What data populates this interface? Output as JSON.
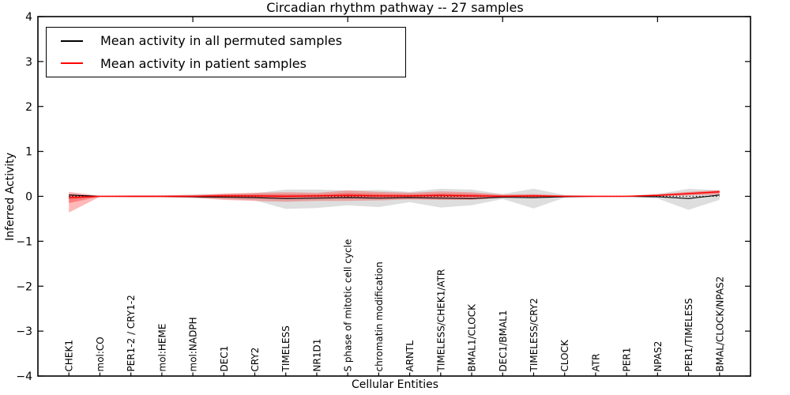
{
  "title": "Circadian rhythm pathway -- 27 samples",
  "axes": {
    "xlabel": "Cellular Entities",
    "ylabel": "Inferred Activity"
  },
  "legend": {
    "position": "upper left",
    "items": [
      {
        "label": "Mean activity in all permuted samples",
        "color": "#000000"
      },
      {
        "label": "Mean activity in patient samples",
        "color": "#ff0000"
      }
    ]
  },
  "chart_data": {
    "type": "line",
    "title": "Circadian rhythm pathway -- 27 samples",
    "xlabel": "Cellular Entities",
    "ylabel": "Inferred Activity",
    "grid": false,
    "legend_position": "upper left",
    "ylim": [
      -4,
      4
    ],
    "yticks": [
      -4,
      -3,
      -2,
      -1,
      0,
      1,
      2,
      3,
      4
    ],
    "top_axis_tick_positions": [
      5,
      10,
      15,
      20
    ],
    "categories": [
      "CHEK1",
      "mol:CO",
      "PER1-2 / CRY1-2",
      "mol:HEME",
      "mol:NADPH",
      "DEC1",
      "CRY2",
      "TIMELESS",
      "NR1D1",
      "S phase of mitotic cell cycle",
      "chromatin modification",
      "ARNTL",
      "TIMELESS/CHEK1/ATR",
      "BMAL1/CLOCK",
      "DEC1/BMAL1",
      "TIMELESS/CRY2",
      "CLOCK",
      "ATR",
      "PER1",
      "NPAS2",
      "PER1/TIMELESS",
      "BMAL/CLOCK/NPAS2"
    ],
    "zero_line": {
      "y": 0,
      "style": "dotted",
      "color": "#000000"
    },
    "series": [
      {
        "name": "Mean activity in all permuted samples",
        "color": "#000000",
        "style": "solid",
        "values": [
          0.03,
          0.0,
          0.0,
          0.0,
          -0.01,
          -0.02,
          -0.03,
          -0.05,
          -0.04,
          -0.03,
          -0.04,
          -0.03,
          -0.04,
          -0.05,
          -0.02,
          -0.03,
          -0.01,
          0.0,
          0.0,
          -0.01,
          -0.05,
          0.03
        ]
      },
      {
        "name": "Mean activity in patient samples",
        "color": "#ff0000",
        "style": "solid",
        "values": [
          -0.03,
          0.0,
          0.0,
          0.0,
          0.0,
          0.01,
          0.01,
          0.0,
          0.01,
          0.02,
          0.01,
          0.01,
          0.02,
          0.01,
          0.0,
          0.01,
          0.0,
          0.0,
          0.0,
          0.02,
          0.06,
          0.1
        ]
      }
    ],
    "bands": [
      {
        "name": "permuted-samples-range",
        "color": "#999999",
        "opacity": 0.32,
        "upper": [
          0.06,
          0.01,
          0.02,
          0.02,
          0.04,
          0.05,
          0.07,
          0.15,
          0.15,
          0.13,
          0.14,
          0.1,
          0.17,
          0.15,
          0.05,
          0.17,
          0.03,
          0.01,
          0.01,
          0.05,
          0.17,
          0.13
        ],
        "lower": [
          -0.07,
          -0.01,
          -0.02,
          -0.02,
          -0.04,
          -0.06,
          -0.09,
          -0.28,
          -0.26,
          -0.2,
          -0.24,
          -0.13,
          -0.25,
          -0.2,
          -0.06,
          -0.27,
          -0.03,
          -0.01,
          -0.01,
          -0.05,
          -0.3,
          -0.08
        ]
      },
      {
        "name": "patient-samples-range-outer",
        "color": "#ff0000",
        "opacity": 0.28,
        "upper": [
          0.1,
          0.01,
          0.02,
          0.02,
          0.03,
          0.06,
          0.08,
          0.09,
          0.08,
          0.13,
          0.1,
          0.08,
          0.11,
          0.09,
          0.04,
          0.05,
          0.02,
          0.01,
          0.01,
          0.05,
          0.1,
          0.14
        ],
        "lower": [
          -0.36,
          -0.01,
          -0.02,
          -0.02,
          -0.03,
          -0.08,
          -0.1,
          -0.12,
          -0.1,
          -0.1,
          -0.09,
          -0.07,
          -0.08,
          -0.08,
          -0.03,
          -0.04,
          -0.02,
          -0.01,
          -0.01,
          0.0,
          0.02,
          0.04
        ]
      },
      {
        "name": "patient-samples-range-inner",
        "color": "#ff0000",
        "opacity": 0.32,
        "upper": [
          0.02,
          0.005,
          0.01,
          0.01,
          0.015,
          0.04,
          0.04,
          0.04,
          0.04,
          0.07,
          0.05,
          0.04,
          0.06,
          0.05,
          0.02,
          0.03,
          0.01,
          0.005,
          0.005,
          0.03,
          0.08,
          0.12
        ],
        "lower": [
          -0.15,
          -0.005,
          -0.01,
          -0.01,
          -0.015,
          -0.02,
          -0.02,
          -0.03,
          -0.02,
          -0.02,
          -0.02,
          -0.02,
          -0.02,
          -0.02,
          -0.01,
          -0.01,
          -0.01,
          -0.005,
          -0.005,
          0.005,
          0.04,
          0.08
        ]
      }
    ]
  }
}
